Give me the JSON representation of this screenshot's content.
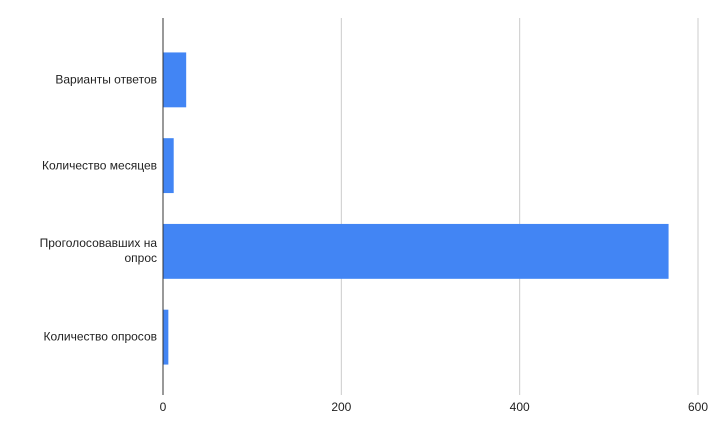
{
  "chart_data": {
    "type": "hbar",
    "categories": [
      "Варианты ответов",
      "Количество месяцев",
      "Проголосовавших на опрос",
      "Количество опросов"
    ],
    "values": [
      26,
      12,
      567,
      6
    ],
    "color": "#4285f4",
    "xlim": [
      0,
      600
    ],
    "xticks": [
      0,
      200,
      400,
      600
    ],
    "grid": true
  }
}
